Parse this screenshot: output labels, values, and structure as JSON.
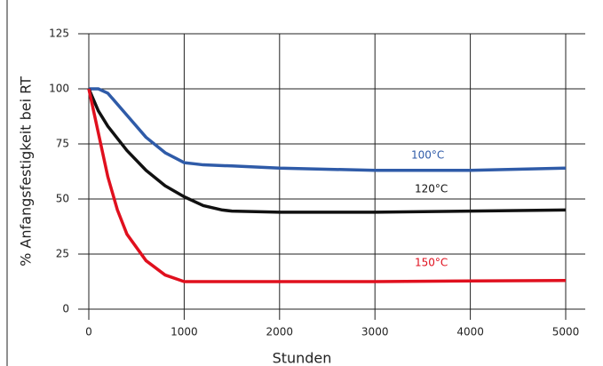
{
  "chart_data": {
    "type": "line",
    "xlabel": "Stunden",
    "ylabel": "% Anfangsfestigkeit bei RT",
    "xlim": [
      0,
      5000
    ],
    "xticks": [
      0,
      1000,
      2000,
      3000,
      4000,
      5000
    ],
    "ylim": [
      0,
      125
    ],
    "yticks": [
      0,
      25,
      50,
      75,
      100,
      125
    ],
    "grid": true,
    "series": [
      {
        "name": "100°C",
        "color": "#2f5ba8",
        "x": [
          0,
          100,
          200,
          400,
          600,
          800,
          1000,
          1100,
          1200,
          1500,
          2000,
          3000,
          4000,
          5000
        ],
        "values": [
          100,
          100,
          98,
          88,
          78,
          71,
          66.5,
          66,
          65.5,
          65,
          64,
          63,
          63,
          64
        ]
      },
      {
        "name": "120°C",
        "color": "#111111",
        "x": [
          0,
          100,
          200,
          400,
          600,
          800,
          1000,
          1200,
          1400,
          1500,
          2000,
          3000,
          4000,
          5000
        ],
        "values": [
          100,
          90,
          83,
          72,
          63,
          56,
          51,
          47,
          45,
          44.5,
          44,
          44,
          44.5,
          45
        ]
      },
      {
        "name": "150°C",
        "color": "#e0101e",
        "x": [
          0,
          100,
          200,
          300,
          400,
          600,
          800,
          1000,
          1200,
          2000,
          3000,
          4000,
          5000
        ],
        "values": [
          100,
          80,
          60,
          45,
          34,
          22,
          15.5,
          12.5,
          12.5,
          12.5,
          12.5,
          12.8,
          13
        ]
      }
    ]
  }
}
